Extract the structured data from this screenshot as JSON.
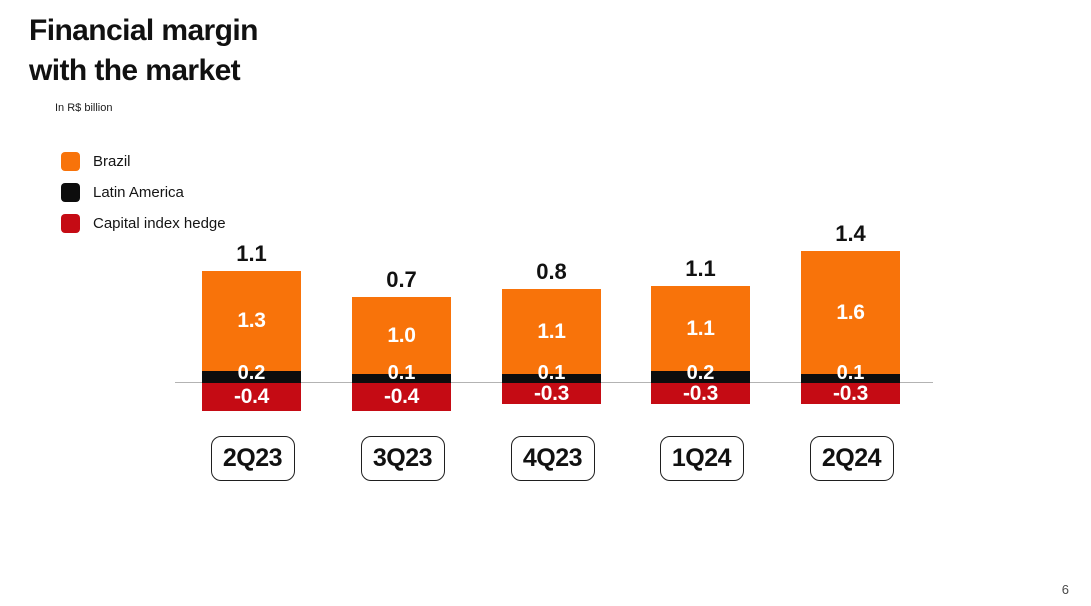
{
  "slide": {
    "title_line1": "Financial margin",
    "title_line2": "with the market",
    "unit_note": "In R$ billion",
    "page_number": "6"
  },
  "legend": {
    "items": [
      {
        "label": "Brazil",
        "color": "#F8730A"
      },
      {
        "label": "Latin America",
        "color": "#0D0D0D"
      },
      {
        "label": "Capital index hedge",
        "color": "#C50B14"
      }
    ]
  },
  "chart_data": {
    "type": "bar",
    "stacked": true,
    "title": "Financial margin with the market",
    "unit": "R$ billion",
    "categories": [
      "2Q23",
      "3Q23",
      "4Q23",
      "1Q24",
      "2Q24"
    ],
    "series": [
      {
        "name": "Brazil",
        "color": "#F8730A",
        "values": [
          1.3,
          1.0,
          1.1,
          1.1,
          1.6
        ]
      },
      {
        "name": "Latin America",
        "color": "#0D0D0D",
        "values": [
          0.2,
          0.1,
          0.1,
          0.2,
          0.1
        ]
      },
      {
        "name": "Capital index hedge",
        "color": "#C50B14",
        "values": [
          -0.4,
          -0.4,
          -0.3,
          -0.3,
          -0.3
        ]
      }
    ],
    "totals": [
      1.1,
      0.7,
      0.8,
      1.1,
      1.4
    ],
    "baseline": 0,
    "grid": false,
    "legend_position": "top-left",
    "value_labels": "inside-white, totals above bars"
  }
}
